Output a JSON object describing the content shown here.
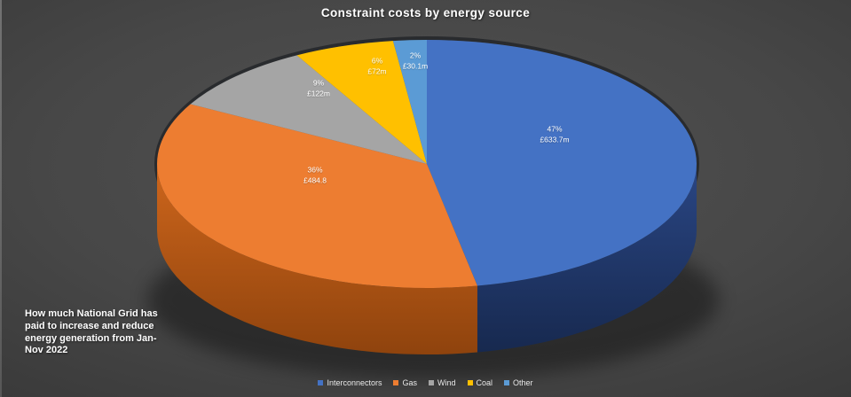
{
  "title": "Constraint costs by energy source",
  "caption": "How much National Grid has\npaid to increase and reduce\nenergy generation from Jan-\nNov 2022",
  "colors": {
    "background_center": "#515151",
    "background_edge": "#2b2b2b",
    "text": "#ffffff"
  },
  "chart_data": {
    "type": "pie",
    "style": "3d-pie",
    "title": "Constraint costs by energy source",
    "legend_position": "bottom",
    "start_angle_deg": 0,
    "direction": "clockwise",
    "slices": [
      {
        "label": "Interconnectors",
        "percent": 47,
        "percent_label": "47%",
        "value": 633.7,
        "value_label": "£633.7m",
        "color": "#4472C4",
        "side_top": "#2A4684",
        "side_bottom": "#17294F"
      },
      {
        "label": "Gas",
        "percent": 36,
        "percent_label": "36%",
        "value": 484.8,
        "value_label": "£484.8",
        "color": "#ED7D31",
        "side_top": "#CE661C",
        "side_bottom": "#8F430D"
      },
      {
        "label": "Wind",
        "percent": 9,
        "percent_label": "9%",
        "value": 122,
        "value_label": "£122m",
        "color": "#A5A5A5"
      },
      {
        "label": "Coal",
        "percent": 6,
        "percent_label": "6%",
        "value": 72,
        "value_label": "£72m",
        "color": "#FFC000"
      },
      {
        "label": "Other",
        "percent": 2,
        "percent_label": "2%",
        "value": 30.1,
        "value_label": "£30.1m",
        "color": "#5B9BD5"
      }
    ]
  }
}
